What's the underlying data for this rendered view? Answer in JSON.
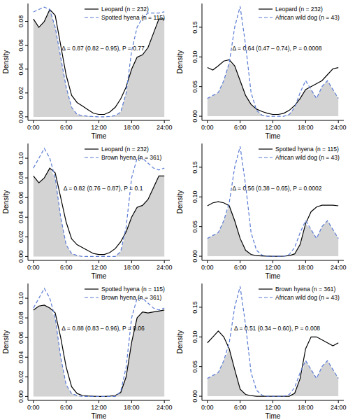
{
  "chart_data": [
    {
      "type": "line",
      "x_label": "Time",
      "y_label": "Density",
      "legend": "top-right",
      "annotation": "Δ = 0.87 (0.82 – 0.95), P = 0.77",
      "x": [
        0,
        1,
        2,
        3,
        4,
        5,
        6,
        7,
        8,
        9,
        10,
        11,
        12,
        13,
        14,
        15,
        16,
        17,
        18,
        19,
        20,
        21,
        22,
        23,
        24
      ],
      "xlim": [
        -1,
        25
      ],
      "xticks": [
        {
          "value": 0,
          "label": "0:00"
        },
        {
          "value": 6,
          "label": "6:00"
        },
        {
          "value": 12,
          "label": "12:00"
        },
        {
          "value": 18,
          "label": "18:00"
        },
        {
          "value": 24,
          "label": "24:00"
        }
      ],
      "ylim": [
        -0.003,
        0.095
      ],
      "yticks": [
        {
          "value": 0,
          "label": "0.00"
        },
        {
          "value": 0.02,
          "label": "0.02"
        },
        {
          "value": 0.04,
          "label": "0.04"
        },
        {
          "value": 0.06,
          "label": "0.06"
        },
        {
          "value": 0.08,
          "label": "0.08"
        }
      ],
      "series": [
        {
          "name": "Leopard (n = 232)",
          "color": "#000000",
          "line_style": "solid",
          "values": [
            0.082,
            0.075,
            0.08,
            0.09,
            0.085,
            0.06,
            0.035,
            0.018,
            0.012,
            0.009,
            0.006,
            0.003,
            0.002,
            0.002,
            0.004,
            0.008,
            0.015,
            0.025,
            0.04,
            0.05,
            0.052,
            0.058,
            0.07,
            0.082,
            0.082
          ]
        },
        {
          "name": "Spotted hyena (n = 115)",
          "color": "#5a7bd4",
          "line_style": "dashed",
          "values": [
            0.088,
            0.09,
            0.092,
            0.09,
            0.075,
            0.05,
            0.025,
            0.008,
            0.002,
            0.001,
            0.0005,
            0.0002,
            0,
            0,
            0.0003,
            0.001,
            0.004,
            0.02,
            0.055,
            0.075,
            0.083,
            0.087,
            0.087,
            0.087,
            0.088
          ]
        }
      ]
    },
    {
      "type": "line",
      "x_label": "Time",
      "y_label": "Density",
      "legend": "top-right",
      "annotation": "Δ = 0.64 (0.47 – 0.74), P = 0.0008",
      "x": [
        0,
        1,
        2,
        3,
        4,
        5,
        6,
        7,
        8,
        9,
        10,
        11,
        12,
        13,
        14,
        15,
        16,
        17,
        18,
        19,
        20,
        21,
        22,
        23,
        24
      ],
      "xlim": [
        -1,
        25
      ],
      "xticks": [
        {
          "value": 0,
          "label": "0:00"
        },
        {
          "value": 6,
          "label": "6:00"
        },
        {
          "value": 12,
          "label": "12:00"
        },
        {
          "value": 18,
          "label": "18:00"
        },
        {
          "value": 24,
          "label": "24:00"
        }
      ],
      "ylim": [
        -0.007,
        0.19
      ],
      "yticks": [
        {
          "value": 0,
          "label": "0.00"
        },
        {
          "value": 0.05,
          "label": "0.05"
        },
        {
          "value": 0.1,
          "label": "0.10"
        },
        {
          "value": 0.15,
          "label": "0.15"
        }
      ],
      "series": [
        {
          "name": "Leopard (n = 232)",
          "color": "#000000",
          "line_style": "solid",
          "values": [
            0.082,
            0.078,
            0.085,
            0.093,
            0.095,
            0.085,
            0.06,
            0.035,
            0.02,
            0.012,
            0.008,
            0.005,
            0.003,
            0.003,
            0.005,
            0.01,
            0.018,
            0.03,
            0.045,
            0.05,
            0.055,
            0.06,
            0.07,
            0.08,
            0.082
          ]
        },
        {
          "name": "African wild dog (n = 43)",
          "color": "#5a7bd4",
          "line_style": "dashed",
          "values": [
            0.03,
            0.035,
            0.04,
            0.06,
            0.09,
            0.15,
            0.185,
            0.12,
            0.04,
            0.01,
            0.002,
            0,
            0,
            0,
            0,
            0.003,
            0.015,
            0.04,
            0.06,
            0.045,
            0.03,
            0.05,
            0.06,
            0.045,
            0.03
          ]
        }
      ]
    },
    {
      "type": "line",
      "x_label": "Time",
      "y_label": "Density",
      "legend": "top-right",
      "annotation": "Δ = 0.82 (0.76 – 0.87), P = 0.1",
      "x": [
        0,
        1,
        2,
        3,
        4,
        5,
        6,
        7,
        8,
        9,
        10,
        11,
        12,
        13,
        14,
        15,
        16,
        17,
        18,
        19,
        20,
        21,
        22,
        23,
        24
      ],
      "xlim": [
        -1,
        25
      ],
      "xticks": [
        {
          "value": 0,
          "label": "0:00"
        },
        {
          "value": 6,
          "label": "6:00"
        },
        {
          "value": 12,
          "label": "12:00"
        },
        {
          "value": 18,
          "label": "18:00"
        },
        {
          "value": 24,
          "label": "24:00"
        }
      ],
      "ylim": [
        -0.004,
        0.115
      ],
      "yticks": [
        {
          "value": 0,
          "label": "0.00"
        },
        {
          "value": 0.02,
          "label": "0.02"
        },
        {
          "value": 0.04,
          "label": "0.04"
        },
        {
          "value": 0.06,
          "label": "0.06"
        },
        {
          "value": 0.08,
          "label": "0.08"
        },
        {
          "value": 0.1,
          "label": "0.10"
        }
      ],
      "series": [
        {
          "name": "Leopard (n = 232)",
          "color": "#000000",
          "line_style": "solid",
          "values": [
            0.082,
            0.075,
            0.08,
            0.09,
            0.085,
            0.06,
            0.035,
            0.018,
            0.012,
            0.009,
            0.006,
            0.003,
            0.002,
            0.002,
            0.004,
            0.008,
            0.015,
            0.025,
            0.04,
            0.05,
            0.052,
            0.058,
            0.07,
            0.082,
            0.082
          ]
        },
        {
          "name": "Brown hyena (n = 361)",
          "color": "#5a7bd4",
          "line_style": "dashed",
          "values": [
            0.09,
            0.1,
            0.11,
            0.1,
            0.08,
            0.04,
            0.012,
            0.003,
            0.001,
            0,
            0,
            0,
            0,
            0,
            0,
            0,
            0.005,
            0.03,
            0.08,
            0.1,
            0.1,
            0.095,
            0.09,
            0.088,
            0.09
          ]
        }
      ]
    },
    {
      "type": "line",
      "x_label": "Time",
      "y_label": "Density",
      "legend": "top-right",
      "annotation": "Δ = 0.56 (0.38 – 0.65), P = 0.0002",
      "x": [
        0,
        1,
        2,
        3,
        4,
        5,
        6,
        7,
        8,
        9,
        10,
        11,
        12,
        13,
        14,
        15,
        16,
        17,
        18,
        19,
        20,
        21,
        22,
        23,
        24
      ],
      "xlim": [
        -1,
        25
      ],
      "xticks": [
        {
          "value": 0,
          "label": "0:00"
        },
        {
          "value": 6,
          "label": "6:00"
        },
        {
          "value": 12,
          "label": "12:00"
        },
        {
          "value": 18,
          "label": "18:00"
        },
        {
          "value": 24,
          "label": "24:00"
        }
      ],
      "ylim": [
        -0.007,
        0.19
      ],
      "yticks": [
        {
          "value": 0,
          "label": "0.00"
        },
        {
          "value": 0.05,
          "label": "0.05"
        },
        {
          "value": 0.1,
          "label": "0.10"
        },
        {
          "value": 0.15,
          "label": "0.15"
        }
      ],
      "series": [
        {
          "name": "Spotted hyena (n = 115)",
          "color": "#000000",
          "line_style": "solid",
          "values": [
            0.085,
            0.09,
            0.092,
            0.09,
            0.085,
            0.06,
            0.03,
            0.01,
            0.003,
            0.001,
            0.0005,
            0.0002,
            0,
            0,
            0.0003,
            0.001,
            0.004,
            0.02,
            0.055,
            0.075,
            0.083,
            0.086,
            0.086,
            0.086,
            0.085
          ]
        },
        {
          "name": "African wild dog (n = 43)",
          "color": "#5a7bd4",
          "line_style": "dashed",
          "values": [
            0.03,
            0.035,
            0.04,
            0.06,
            0.09,
            0.15,
            0.185,
            0.12,
            0.04,
            0.01,
            0.002,
            0,
            0,
            0,
            0,
            0.003,
            0.015,
            0.04,
            0.06,
            0.045,
            0.03,
            0.05,
            0.06,
            0.045,
            0.03
          ]
        }
      ]
    },
    {
      "type": "line",
      "x_label": "Time",
      "y_label": "Density",
      "legend": "top-right",
      "annotation": "Δ = 0.88 (0.83 – 0.96), P = 0.06",
      "x": [
        0,
        1,
        2,
        3,
        4,
        5,
        6,
        7,
        8,
        9,
        10,
        11,
        12,
        13,
        14,
        15,
        16,
        17,
        18,
        19,
        20,
        21,
        22,
        23,
        24
      ],
      "xlim": [
        -1,
        25
      ],
      "xticks": [
        {
          "value": 0,
          "label": "0:00"
        },
        {
          "value": 6,
          "label": "6:00"
        },
        {
          "value": 12,
          "label": "12:00"
        },
        {
          "value": 18,
          "label": "18:00"
        },
        {
          "value": 24,
          "label": "24:00"
        }
      ],
      "ylim": [
        -0.004,
        0.115
      ],
      "yticks": [
        {
          "value": 0,
          "label": "0.00"
        },
        {
          "value": 0.02,
          "label": "0.02"
        },
        {
          "value": 0.04,
          "label": "0.04"
        },
        {
          "value": 0.06,
          "label": "0.06"
        },
        {
          "value": 0.08,
          "label": "0.08"
        },
        {
          "value": 0.1,
          "label": "0.10"
        }
      ],
      "series": [
        {
          "name": "Spotted hyena (n = 115)",
          "color": "#000000",
          "line_style": "solid",
          "values": [
            0.088,
            0.092,
            0.093,
            0.09,
            0.085,
            0.06,
            0.03,
            0.01,
            0.003,
            0.001,
            0.0005,
            0.0002,
            0,
            0,
            0.0003,
            0.001,
            0.004,
            0.02,
            0.055,
            0.08,
            0.086,
            0.085,
            0.086,
            0.087,
            0.088
          ]
        },
        {
          "name": "Brown hyena (n = 361)",
          "color": "#5a7bd4",
          "line_style": "dashed",
          "values": [
            0.09,
            0.1,
            0.11,
            0.1,
            0.08,
            0.04,
            0.012,
            0.003,
            0.001,
            0,
            0,
            0,
            0,
            0,
            0,
            0,
            0.005,
            0.03,
            0.08,
            0.1,
            0.1,
            0.095,
            0.09,
            0.088,
            0.09
          ]
        }
      ]
    },
    {
      "type": "line",
      "x_label": "Time",
      "y_label": "Density",
      "legend": "top-right",
      "annotation": "Δ = 0.51 (0.34 – 0.60), P = 0.008",
      "x": [
        0,
        1,
        2,
        3,
        4,
        5,
        6,
        7,
        8,
        9,
        10,
        11,
        12,
        13,
        14,
        15,
        16,
        17,
        18,
        19,
        20,
        21,
        22,
        23,
        24
      ],
      "xlim": [
        -1,
        25
      ],
      "xticks": [
        {
          "value": 0,
          "label": "0:00"
        },
        {
          "value": 6,
          "label": "6:00"
        },
        {
          "value": 12,
          "label": "12:00"
        },
        {
          "value": 18,
          "label": "18:00"
        },
        {
          "value": 24,
          "label": "24:00"
        }
      ],
      "ylim": [
        -0.007,
        0.19
      ],
      "yticks": [
        {
          "value": 0,
          "label": "0.00"
        },
        {
          "value": 0.05,
          "label": "0.05"
        },
        {
          "value": 0.1,
          "label": "0.10"
        },
        {
          "value": 0.15,
          "label": "0.15"
        }
      ],
      "series": [
        {
          "name": "Brown hyena (n = 361)",
          "color": "#000000",
          "line_style": "solid",
          "values": [
            0.09,
            0.1,
            0.11,
            0.1,
            0.08,
            0.045,
            0.012,
            0.003,
            0.001,
            0,
            0,
            0,
            0,
            0,
            0,
            0,
            0.005,
            0.03,
            0.08,
            0.1,
            0.1,
            0.095,
            0.09,
            0.085,
            0.09
          ]
        },
        {
          "name": "African wild dog (n = 43)",
          "color": "#5a7bd4",
          "line_style": "dashed",
          "values": [
            0.03,
            0.035,
            0.04,
            0.06,
            0.09,
            0.15,
            0.185,
            0.12,
            0.04,
            0.01,
            0.002,
            0,
            0,
            0,
            0,
            0.003,
            0.015,
            0.04,
            0.06,
            0.045,
            0.03,
            0.05,
            0.06,
            0.045,
            0.03
          ]
        }
      ]
    }
  ]
}
